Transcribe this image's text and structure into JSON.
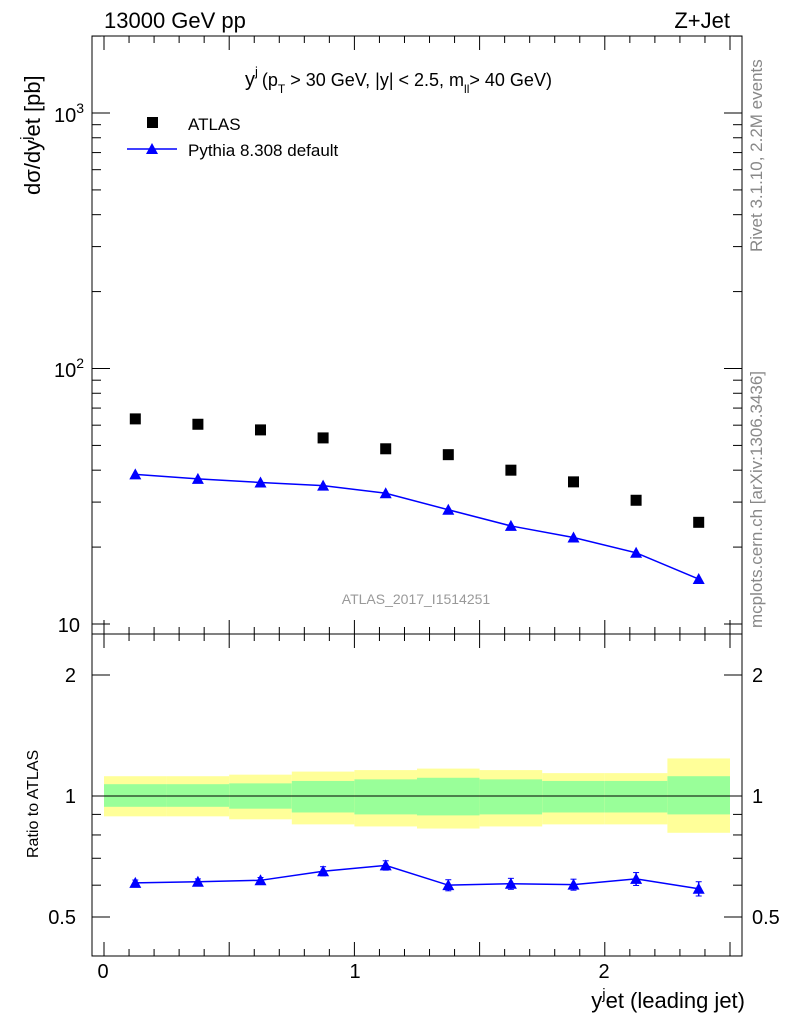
{
  "header": {
    "energy_label": "13000 GeV pp",
    "process_label": "Z+Jet"
  },
  "side": {
    "rivet_label": "Rivet 3.1.10,  2.2M events",
    "mcplots_label": "mcplots.cern.ch [arXiv:1306.3436]"
  },
  "chart_data": [
    {
      "type": "scatter",
      "panel": "main",
      "title": "y^j (p_T > 30 GeV, |y| < 2.5, m_ll > 40 GeV)",
      "title_parts": {
        "y": "y",
        "j": "j",
        "open": "(p",
        "T": "T",
        "mid": " > 30 GeV, |y| < 2.5, m",
        "ll": "ll",
        "tail": "> 40 GeV)"
      },
      "ylabel": "dσ/dy^jet [pb]",
      "ylabel_parts": {
        "pre": "dσ/dy",
        "sup": "j",
        "post": "et [pb]"
      },
      "yscale": "log",
      "ylim": [
        9.5,
        2000
      ],
      "xlim": [
        -0.1,
        2.55
      ],
      "ytick_labels": {
        "ten": "10",
        "hundred_base": "10",
        "hundred_exp": "2",
        "thousand_base": "10",
        "thousand_exp": "3"
      },
      "watermark": "ATLAS_2017_I1514251",
      "legend_position": "top-left",
      "x": [
        0.125,
        0.375,
        0.625,
        0.875,
        1.125,
        1.375,
        1.625,
        1.875,
        2.125,
        2.375
      ],
      "x_edges": [
        0,
        0.25,
        0.5,
        0.75,
        1.0,
        1.25,
        1.5,
        1.75,
        2.0,
        2.25,
        2.5
      ],
      "series": [
        {
          "name": "ATLAS",
          "style": "black-square",
          "color": "#000000",
          "values": [
            63.5,
            60.5,
            57.5,
            53.5,
            48.5,
            46.0,
            40.0,
            36.0,
            30.5,
            25.0
          ]
        },
        {
          "name": "Pythia 8.308 default",
          "style": "blue-line-triangle",
          "color": "#0000ff",
          "values": [
            38.5,
            37.0,
            35.8,
            34.8,
            32.5,
            28.0,
            24.2,
            21.8,
            19.0,
            15.0
          ]
        }
      ]
    },
    {
      "type": "line",
      "panel": "ratio",
      "ylabel": "Ratio to ATLAS",
      "xlabel": "y^jet (leading jet)",
      "xlabel_parts": {
        "pre": "y",
        "sup": "j",
        "post": "et (leading jet)"
      },
      "ylim": [
        0.35,
        2.4
      ],
      "xlim": [
        -0.1,
        2.55
      ],
      "ytick_labels": [
        "0.5",
        "1",
        "2"
      ],
      "xtick_labels": [
        "0",
        "1",
        "2"
      ],
      "reference_line": 1.0,
      "bands": {
        "total_color": "#ffff99",
        "stat_color": "#99ff99",
        "total_lower": [
          0.89,
          0.89,
          0.875,
          0.85,
          0.84,
          0.83,
          0.84,
          0.85,
          0.85,
          0.81
        ],
        "total_upper": [
          1.12,
          1.12,
          1.13,
          1.15,
          1.16,
          1.17,
          1.16,
          1.14,
          1.14,
          1.24
        ],
        "stat_lower": [
          0.94,
          0.94,
          0.93,
          0.91,
          0.9,
          0.895,
          0.9,
          0.91,
          0.91,
          0.9
        ],
        "stat_upper": [
          1.07,
          1.07,
          1.075,
          1.09,
          1.1,
          1.11,
          1.1,
          1.09,
          1.09,
          1.12
        ]
      },
      "x": [
        0.125,
        0.375,
        0.625,
        0.875,
        1.125,
        1.375,
        1.625,
        1.875,
        2.125,
        2.375
      ],
      "series": [
        {
          "name": "Pythia 8.308 default",
          "color": "#0000ff",
          "values": [
            0.608,
            0.612,
            0.617,
            0.65,
            0.672,
            0.6,
            0.605,
            0.602,
            0.622,
            0.588
          ],
          "errors": [
            0.01,
            0.01,
            0.01,
            0.017,
            0.018,
            0.019,
            0.019,
            0.019,
            0.023,
            0.024
          ]
        }
      ]
    }
  ]
}
